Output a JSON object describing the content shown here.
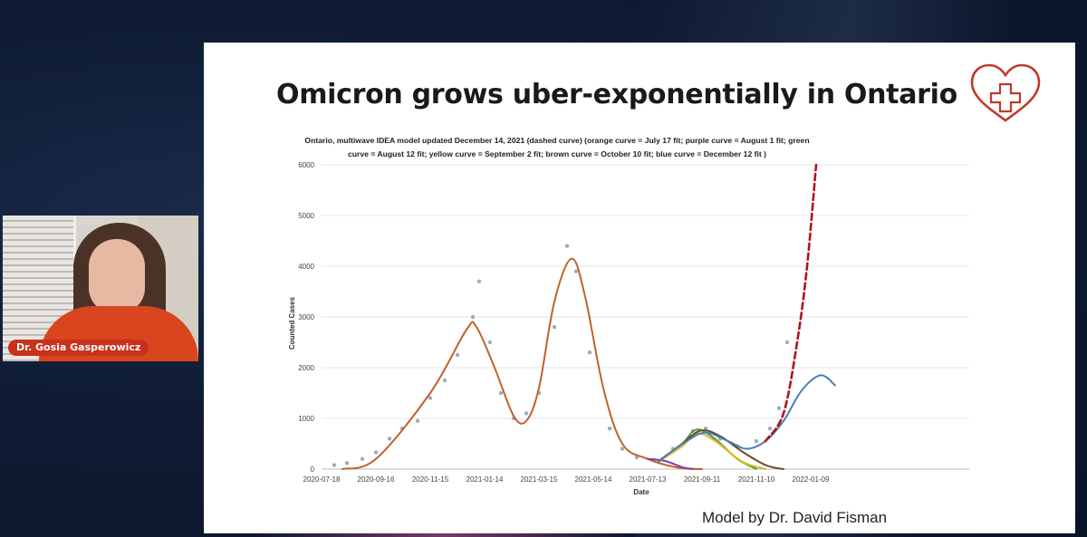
{
  "slide": {
    "title": "Omicron grows uber-exponentially in Ontario",
    "credit": "Model by Dr. David Fisman",
    "icon": "heart-with-cross-icon"
  },
  "participant": {
    "name": "Dr. Gosia Gasperowicz"
  },
  "colors": {
    "slide_bg": "#ffffff",
    "name_badge": "#c8321c",
    "orange_curve": "#c0622c",
    "purple_curve": "#7b3fa0",
    "green_curve": "#4f9a3a",
    "yellow_curve": "#e0b820",
    "brown_curve": "#6b4a2a",
    "blue_curve": "#4a7fb5",
    "dashed_curve": "#b3121a",
    "points": "#7f8fa8"
  },
  "chart_data": {
    "type": "line",
    "title_line1": "Ontario, multiwave IDEA model updated December 14, 2021 (dashed curve) (orange curve = July 17 fit; purple curve = August 1 fit; green",
    "title_line2": "curve = August 12 fit; yellow curve = September 2 fit; brown curve = October 10 fit; blue curve = December 12 fit )",
    "xlabel": "Date",
    "ylabel": "Counted Cases",
    "ylim": [
      0,
      6000
    ],
    "y_ticks": [
      "0",
      "1000",
      "2000",
      "3000",
      "4000",
      "5000",
      "6000"
    ],
    "x_ticks": [
      "2020-07-18",
      "2020-09-16",
      "2020-11-15",
      "2021-01-14",
      "2021-03-15",
      "2021-05-14",
      "2021-07-13",
      "2021-09-11",
      "2021-11-10",
      "2022-01-09"
    ],
    "grid": true,
    "legend": "none",
    "observed_points": [
      {
        "x": "2020-08-01",
        "y": 80
      },
      {
        "x": "2020-08-15",
        "y": 120
      },
      {
        "x": "2020-09-01",
        "y": 200
      },
      {
        "x": "2020-09-16",
        "y": 330
      },
      {
        "x": "2020-10-01",
        "y": 600
      },
      {
        "x": "2020-10-15",
        "y": 800
      },
      {
        "x": "2020-11-01",
        "y": 950
      },
      {
        "x": "2020-11-15",
        "y": 1400
      },
      {
        "x": "2020-12-01",
        "y": 1750
      },
      {
        "x": "2020-12-15",
        "y": 2250
      },
      {
        "x": "2021-01-01",
        "y": 3000
      },
      {
        "x": "2021-01-08",
        "y": 3700
      },
      {
        "x": "2021-01-20",
        "y": 2500
      },
      {
        "x": "2021-02-01",
        "y": 1500
      },
      {
        "x": "2021-02-15",
        "y": 1000
      },
      {
        "x": "2021-03-01",
        "y": 1100
      },
      {
        "x": "2021-03-15",
        "y": 1500
      },
      {
        "x": "2021-04-01",
        "y": 2800
      },
      {
        "x": "2021-04-15",
        "y": 4400
      },
      {
        "x": "2021-04-25",
        "y": 3900
      },
      {
        "x": "2021-05-10",
        "y": 2300
      },
      {
        "x": "2021-06-01",
        "y": 800
      },
      {
        "x": "2021-06-15",
        "y": 400
      },
      {
        "x": "2021-07-01",
        "y": 230
      },
      {
        "x": "2021-07-20",
        "y": 180
      },
      {
        "x": "2021-08-10",
        "y": 400
      },
      {
        "x": "2021-09-01",
        "y": 750
      },
      {
        "x": "2021-09-15",
        "y": 800
      },
      {
        "x": "2021-10-01",
        "y": 600
      },
      {
        "x": "2021-10-20",
        "y": 450
      },
      {
        "x": "2021-11-10",
        "y": 550
      },
      {
        "x": "2021-11-25",
        "y": 800
      },
      {
        "x": "2021-12-05",
        "y": 1200
      },
      {
        "x": "2021-12-14",
        "y": 2500
      }
    ],
    "series": [
      {
        "name": "orange curve = July 17 fit",
        "color": "orange_curve",
        "style": "solid",
        "points": [
          {
            "x": "2020-08-10",
            "y": 0
          },
          {
            "x": "2020-09-16",
            "y": 200
          },
          {
            "x": "2020-11-15",
            "y": 1500
          },
          {
            "x": "2020-12-25",
            "y": 2750
          },
          {
            "x": "2021-01-05",
            "y": 2800
          },
          {
            "x": "2021-01-25",
            "y": 2000
          },
          {
            "x": "2021-02-15",
            "y": 1050
          },
          {
            "x": "2021-03-01",
            "y": 950
          },
          {
            "x": "2021-03-15",
            "y": 1600
          },
          {
            "x": "2021-04-01",
            "y": 3300
          },
          {
            "x": "2021-04-20",
            "y": 4150
          },
          {
            "x": "2021-05-05",
            "y": 3400
          },
          {
            "x": "2021-05-25",
            "y": 1600
          },
          {
            "x": "2021-06-15",
            "y": 500
          },
          {
            "x": "2021-07-13",
            "y": 200
          },
          {
            "x": "2021-08-15",
            "y": 30
          },
          {
            "x": "2021-09-11",
            "y": 0
          }
        ]
      },
      {
        "name": "purple curve = August 1 fit",
        "color": "purple_curve",
        "style": "solid",
        "points": [
          {
            "x": "2021-07-13",
            "y": 200
          },
          {
            "x": "2021-08-01",
            "y": 160
          },
          {
            "x": "2021-08-20",
            "y": 40
          },
          {
            "x": "2021-09-01",
            "y": 0
          }
        ]
      },
      {
        "name": "green curve = August 12 fit",
        "color": "green_curve",
        "style": "solid",
        "points": [
          {
            "x": "2021-07-25",
            "y": 150
          },
          {
            "x": "2021-08-20",
            "y": 500
          },
          {
            "x": "2021-09-05",
            "y": 780
          },
          {
            "x": "2021-09-25",
            "y": 600
          },
          {
            "x": "2021-10-20",
            "y": 200
          },
          {
            "x": "2021-11-10",
            "y": 0
          }
        ]
      },
      {
        "name": "yellow curve = September 2 fit",
        "color": "yellow_curve",
        "style": "solid",
        "points": [
          {
            "x": "2021-07-25",
            "y": 150
          },
          {
            "x": "2021-08-20",
            "y": 450
          },
          {
            "x": "2021-09-05",
            "y": 700
          },
          {
            "x": "2021-09-25",
            "y": 560
          },
          {
            "x": "2021-10-25",
            "y": 150
          },
          {
            "x": "2021-11-20",
            "y": 0
          }
        ]
      },
      {
        "name": "brown curve = October 10 fit",
        "color": "brown_curve",
        "style": "solid",
        "points": [
          {
            "x": "2021-07-25",
            "y": 150
          },
          {
            "x": "2021-08-20",
            "y": 500
          },
          {
            "x": "2021-09-10",
            "y": 760
          },
          {
            "x": "2021-10-01",
            "y": 650
          },
          {
            "x": "2021-10-25",
            "y": 350
          },
          {
            "x": "2021-11-20",
            "y": 80
          },
          {
            "x": "2021-12-10",
            "y": 0
          }
        ]
      },
      {
        "name": "blue curve = December 12 fit",
        "color": "blue_curve",
        "style": "solid",
        "points": [
          {
            "x": "2021-07-25",
            "y": 160
          },
          {
            "x": "2021-08-25",
            "y": 550
          },
          {
            "x": "2021-09-15",
            "y": 720
          },
          {
            "x": "2021-10-10",
            "y": 550
          },
          {
            "x": "2021-10-30",
            "y": 400
          },
          {
            "x": "2021-11-20",
            "y": 550
          },
          {
            "x": "2021-12-10",
            "y": 950
          },
          {
            "x": "2021-12-30",
            "y": 1550
          },
          {
            "x": "2022-01-20",
            "y": 1850
          },
          {
            "x": "2022-02-05",
            "y": 1650
          }
        ]
      },
      {
        "name": "dashed curve = December 14 update",
        "color": "dashed_curve",
        "style": "dashed",
        "points": [
          {
            "x": "2021-11-20",
            "y": 550
          },
          {
            "x": "2021-12-10",
            "y": 1100
          },
          {
            "x": "2021-12-25",
            "y": 2500
          },
          {
            "x": "2022-01-05",
            "y": 4000
          },
          {
            "x": "2022-01-15",
            "y": 6000
          }
        ]
      }
    ]
  }
}
